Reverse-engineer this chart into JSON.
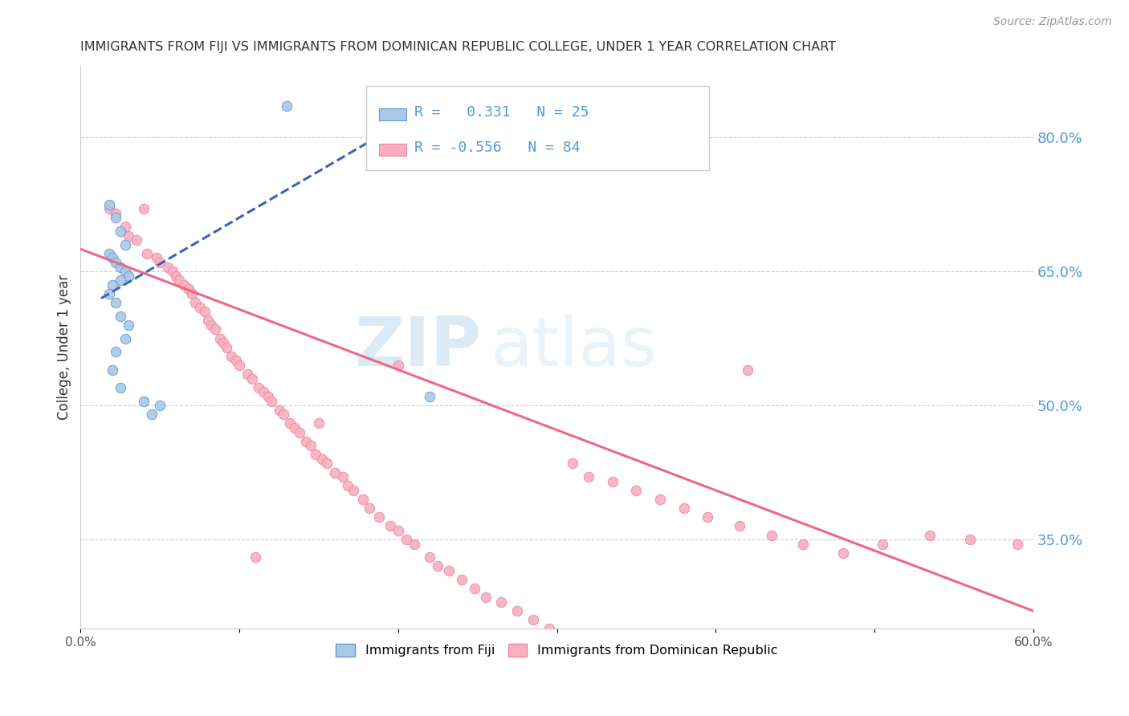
{
  "title": "IMMIGRANTS FROM FIJI VS IMMIGRANTS FROM DOMINICAN REPUBLIC COLLEGE, UNDER 1 YEAR CORRELATION CHART",
  "source_text": "Source: ZipAtlas.com",
  "ylabel": "College, Under 1 year",
  "xmin": 0.0,
  "xmax": 0.6,
  "ymin": 0.25,
  "ymax": 0.88,
  "right_yticks": [
    0.35,
    0.5,
    0.65,
    0.8
  ],
  "right_yticklabels": [
    "35.0%",
    "50.0%",
    "65.0%",
    "80.0%"
  ],
  "xticks": [
    0.0,
    0.1,
    0.2,
    0.3,
    0.4,
    0.5,
    0.6
  ],
  "xticklabels": [
    "0.0%",
    "",
    "",
    "",
    "",
    "",
    "60.0%"
  ],
  "fiji_color": "#a8c8e8",
  "fiji_edge_color": "#6699cc",
  "dr_color": "#f8b0c0",
  "dr_edge_color": "#ee8899",
  "line_fiji_color": "#3366bb",
  "line_dr_color": "#ee6688",
  "fiji_R": 0.331,
  "fiji_N": 25,
  "dr_R": -0.556,
  "dr_N": 84,
  "fiji_scatter_x": [
    0.018,
    0.022,
    0.025,
    0.028,
    0.018,
    0.02,
    0.022,
    0.025,
    0.028,
    0.03,
    0.025,
    0.02,
    0.018,
    0.022,
    0.025,
    0.03,
    0.028,
    0.022,
    0.02,
    0.025,
    0.04,
    0.05,
    0.13,
    0.045,
    0.22
  ],
  "fiji_scatter_y": [
    0.725,
    0.71,
    0.695,
    0.68,
    0.67,
    0.665,
    0.66,
    0.655,
    0.65,
    0.645,
    0.64,
    0.635,
    0.625,
    0.615,
    0.6,
    0.59,
    0.575,
    0.56,
    0.54,
    0.52,
    0.505,
    0.5,
    0.835,
    0.49,
    0.51
  ],
  "dr_scatter_x": [
    0.018,
    0.022,
    0.028,
    0.03,
    0.035,
    0.04,
    0.042,
    0.048,
    0.05,
    0.055,
    0.058,
    0.06,
    0.062,
    0.065,
    0.068,
    0.07,
    0.072,
    0.075,
    0.078,
    0.08,
    0.082,
    0.085,
    0.088,
    0.09,
    0.092,
    0.095,
    0.098,
    0.1,
    0.105,
    0.108,
    0.112,
    0.115,
    0.118,
    0.12,
    0.125,
    0.128,
    0.132,
    0.135,
    0.138,
    0.142,
    0.145,
    0.148,
    0.152,
    0.155,
    0.16,
    0.165,
    0.168,
    0.172,
    0.178,
    0.182,
    0.188,
    0.195,
    0.2,
    0.205,
    0.21,
    0.22,
    0.225,
    0.232,
    0.24,
    0.248,
    0.255,
    0.265,
    0.275,
    0.285,
    0.295,
    0.31,
    0.32,
    0.335,
    0.35,
    0.365,
    0.38,
    0.395,
    0.415,
    0.435,
    0.455,
    0.48,
    0.505,
    0.535,
    0.56,
    0.59,
    0.2,
    0.15,
    0.11,
    0.42
  ],
  "dr_scatter_y": [
    0.72,
    0.715,
    0.7,
    0.69,
    0.685,
    0.72,
    0.67,
    0.665,
    0.66,
    0.655,
    0.65,
    0.645,
    0.64,
    0.635,
    0.63,
    0.625,
    0.615,
    0.61,
    0.605,
    0.595,
    0.59,
    0.585,
    0.575,
    0.57,
    0.565,
    0.555,
    0.55,
    0.545,
    0.535,
    0.53,
    0.52,
    0.515,
    0.51,
    0.505,
    0.495,
    0.49,
    0.48,
    0.475,
    0.47,
    0.46,
    0.455,
    0.445,
    0.44,
    0.435,
    0.425,
    0.42,
    0.41,
    0.405,
    0.395,
    0.385,
    0.375,
    0.365,
    0.36,
    0.35,
    0.345,
    0.33,
    0.32,
    0.315,
    0.305,
    0.295,
    0.285,
    0.28,
    0.27,
    0.26,
    0.25,
    0.435,
    0.42,
    0.415,
    0.405,
    0.395,
    0.385,
    0.375,
    0.365,
    0.355,
    0.345,
    0.335,
    0.345,
    0.355,
    0.35,
    0.345,
    0.545,
    0.48,
    0.33,
    0.54
  ],
  "watermark_zip": "ZIP",
  "watermark_atlas": "atlas",
  "background_color": "#ffffff",
  "grid_color": "#cccccc",
  "title_color": "#333333",
  "right_axis_color": "#5599dd",
  "marker_size": 9,
  "fiji_line_x": [
    0.013,
    0.225
  ],
  "fiji_line_y": [
    0.62,
    0.84
  ],
  "dr_line_x": [
    0.0,
    0.6
  ],
  "dr_line_y": [
    0.675,
    0.27
  ]
}
